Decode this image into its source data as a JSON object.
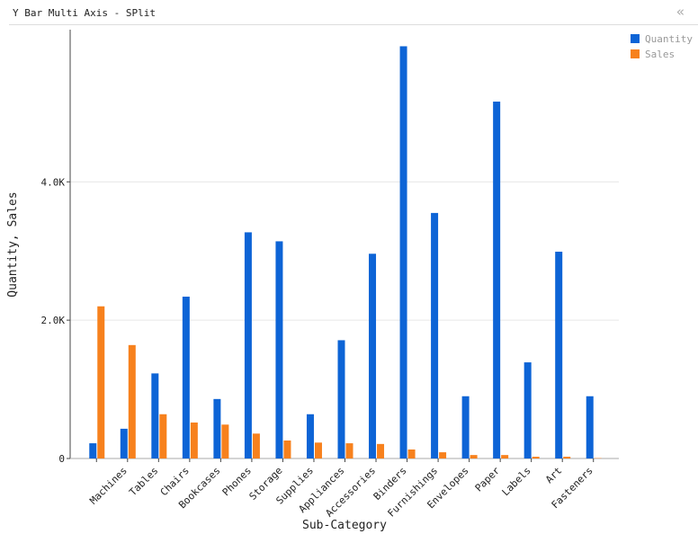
{
  "header": {
    "title": "Y Bar Multi Axis - SPlit"
  },
  "chart_data": {
    "type": "bar",
    "x_label": "Sub-Category",
    "y_label": "Quantity, Sales",
    "categories": [
      null,
      "Machines",
      "Tables",
      "Chairs",
      "Bookcases",
      "Phones",
      "Storage",
      "Supplies",
      "Appliances",
      "Accessories",
      "Binders",
      "Furnishings",
      "Envelopes",
      "Paper",
      "Labels",
      "Art",
      "Fasteners"
    ],
    "series": [
      {
        "name": "Quantity",
        "color": "#0d64d6",
        "values": [
          220,
          430,
          1230,
          2340,
          860,
          3270,
          3140,
          640,
          1710,
          2960,
          5960,
          3550,
          900,
          5160,
          1390,
          2990,
          900
        ]
      },
      {
        "name": "Sales",
        "color": "#f7811d",
        "values": [
          2200,
          1640,
          640,
          520,
          490,
          360,
          260,
          230,
          220,
          210,
          130,
          90,
          50,
          50,
          25,
          25,
          5
        ]
      }
    ],
    "ylim": [
      0,
      6200
    ],
    "yticks": [
      0,
      {
        "value": 2000,
        "label": "2.0K"
      },
      {
        "value": 4000,
        "label": "4.0K"
      }
    ],
    "grid": true,
    "legend": "right"
  }
}
